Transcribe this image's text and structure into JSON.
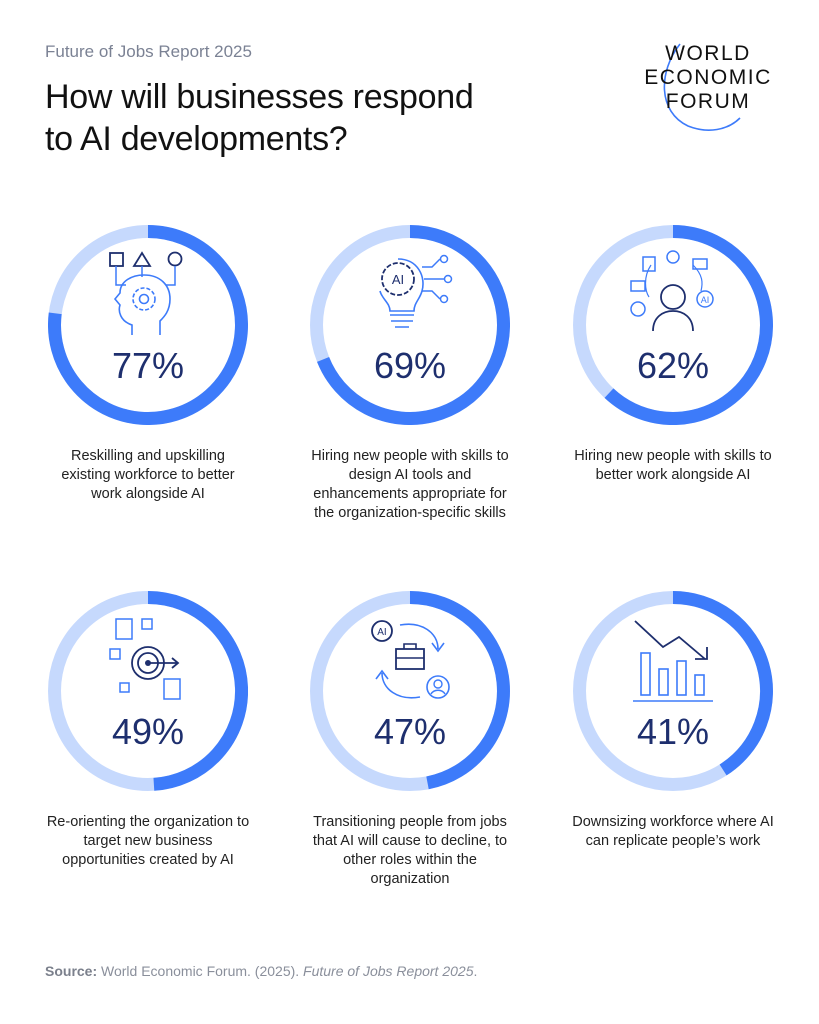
{
  "header": {
    "subtitle": "Future of Jobs Report 2025",
    "title_line1": "How will businesses respond",
    "title_line2": "to AI developments?"
  },
  "logo": {
    "lines": [
      "WORLD",
      "ECONOMIC",
      "FORUM"
    ]
  },
  "colors": {
    "filled": "#3d7bfa",
    "track": "#c6d9fd",
    "percent_text": "#1e2f6e",
    "icon": "#3d7bfa",
    "icon_dark": "#1e2f6e"
  },
  "chart_data": {
    "type": "donut",
    "unit": "%",
    "items": [
      {
        "value": 77,
        "display": "77%",
        "label": "Reskilling and upskilling existing workforce to better work alongside AI",
        "icon": "head-gear-shapes-icon"
      },
      {
        "value": 69,
        "display": "69%",
        "label": "Hiring new people with skills to design AI tools and enhancements appropriate for the organization-specific skills",
        "icon": "ai-lightbulb-icon"
      },
      {
        "value": 62,
        "display": "62%",
        "label": "Hiring new people with skills to better work alongside AI",
        "icon": "person-ai-network-icon"
      },
      {
        "value": 49,
        "display": "49%",
        "label": "Re-orienting the organization to target new business opportunities created by AI",
        "icon": "target-documents-icon"
      },
      {
        "value": 47,
        "display": "47%",
        "label": "Transitioning people from jobs that AI will cause to decline, to other roles within the organization",
        "icon": "ai-briefcase-cycle-icon"
      },
      {
        "value": 41,
        "display": "41%",
        "label": "Downsizing workforce where AI can replicate people’s work",
        "icon": "declining-bar-chart-icon"
      }
    ]
  },
  "source": {
    "label": "Source:",
    "text": "World Economic Forum. (2025). ",
    "italic": "Future of Jobs Report 2025",
    "end": "."
  }
}
